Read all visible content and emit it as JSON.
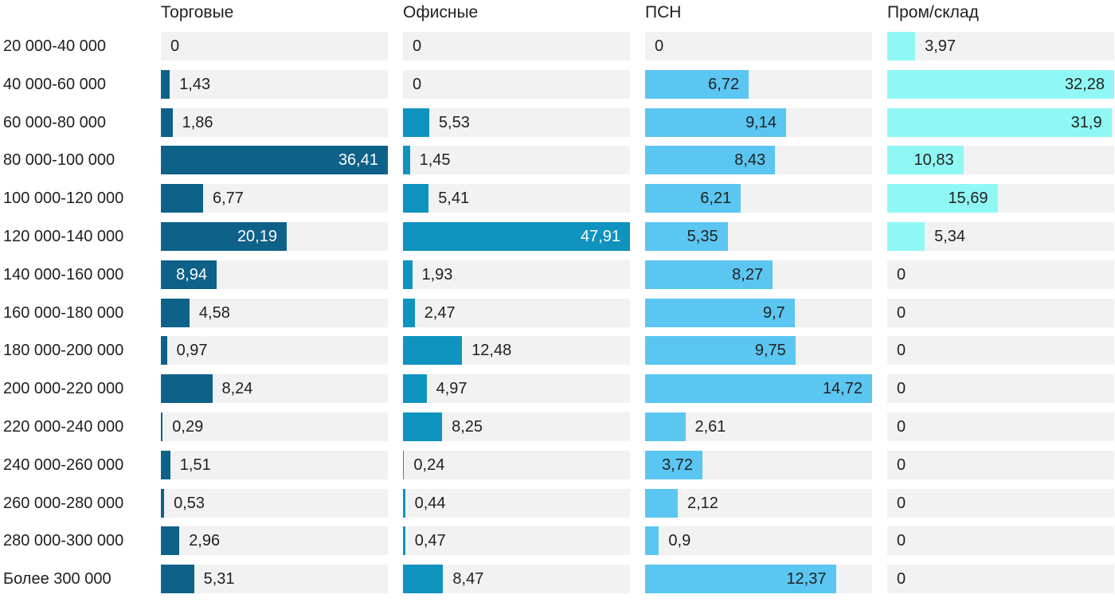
{
  "chart_data": {
    "type": "bar",
    "orientation": "horizontal",
    "layout": "four-panel small multiples, each panel scaled to its own max value",
    "grid": false,
    "legend_position": "column headers on top",
    "value_decimal_separator": ",",
    "track_color": "#f2f2f2",
    "text_color": "#212121",
    "inside_label_light_text": "#ffffff",
    "categories": [
      "20 000-40 000",
      "40 000-60 000",
      "60 000-80 000",
      "80 000-100 000",
      "100 000-120 000",
      "120 000-140 000",
      "140 000-160 000",
      "160 000-180 000",
      "180 000-200 000",
      "200 000-220 000",
      "220 000-240 000",
      "240 000-260 000",
      "260 000-280 000",
      "280 000-300 000",
      "Более 300 000"
    ],
    "series": [
      {
        "name": "Торговые",
        "color": "#0e6189",
        "inside_text": "light",
        "values": [
          0,
          1.43,
          1.86,
          36.41,
          6.77,
          20.19,
          8.94,
          4.58,
          0.97,
          8.24,
          0.29,
          1.51,
          0.53,
          2.96,
          5.31
        ]
      },
      {
        "name": "Офисные",
        "color": "#0f93bf",
        "inside_text": "light",
        "values": [
          0,
          0,
          5.53,
          1.45,
          5.41,
          47.91,
          1.93,
          2.47,
          12.48,
          4.97,
          8.25,
          0.24,
          0.44,
          0.47,
          8.47
        ]
      },
      {
        "name": "ПСН",
        "color": "#5bc6f1",
        "inside_text": "dark",
        "values": [
          0,
          6.72,
          9.14,
          8.43,
          6.21,
          5.35,
          8.27,
          9.7,
          9.75,
          14.72,
          2.61,
          3.72,
          2.12,
          0.9,
          12.37
        ]
      },
      {
        "name": "Пром/склад",
        "color": "#90f8f4",
        "inside_text": "dark",
        "values": [
          3.97,
          32.28,
          31.9,
          10.83,
          15.69,
          5.34,
          0,
          0,
          0,
          0,
          0,
          0,
          0,
          0,
          0
        ]
      }
    ]
  }
}
